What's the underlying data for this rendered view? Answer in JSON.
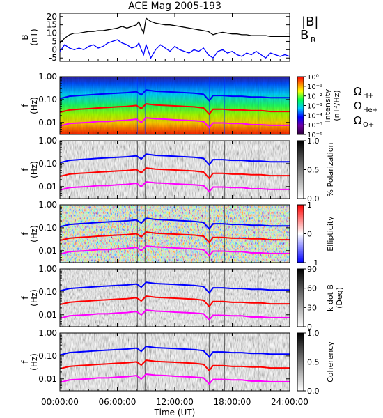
{
  "title": "ACE Mag 2005-193",
  "colors": {
    "bmag": "#000000",
    "br": "#0000ff",
    "h_plus": "#0000ff",
    "he_plus": "#ff0000",
    "o_plus": "#ff00ff"
  },
  "chart_data": {
    "type": "multi-panel",
    "x_axis": {
      "label": "Time (UT)",
      "range": [
        "00:00:00",
        "24:00:00"
      ],
      "ticks": [
        "00:00:00",
        "06:00:00",
        "12:00:00",
        "18:00:00",
        "24:00:00"
      ]
    },
    "panels": [
      {
        "name": "magnetic-field",
        "type": "line",
        "ylabel": "B",
        "yunits": "(nT)",
        "ylim": [
          -7,
          22
        ],
        "yticks": [
          "20",
          "15",
          "10",
          "5",
          "0",
          "-5"
        ],
        "legend": [
          "|B|",
          "B"
        ],
        "legend_sub": "R",
        "series": [
          {
            "name": "|B|",
            "color": "#000000",
            "x_hours": [
              0,
              0.5,
              1,
              1.5,
              2,
              2.5,
              3,
              3.5,
              4,
              4.5,
              5,
              5.5,
              6,
              6.5,
              7,
              7.5,
              8,
              8.25,
              8.5,
              8.75,
              9,
              9.5,
              10,
              10.5,
              11,
              11.5,
              12,
              12.5,
              13,
              13.5,
              14,
              14.5,
              15,
              15.5,
              16,
              16.5,
              17,
              17.5,
              18,
              18.5,
              19,
              19.5,
              20,
              20.5,
              21,
              21.5,
              22,
              22.5,
              23,
              23.5,
              24
            ],
            "values": [
              4,
              7,
              9,
              10,
              10,
              10.5,
              11,
              11,
              11.5,
              11.5,
              12,
              12.5,
              13,
              14,
              13,
              14,
              15,
              17,
              13,
              10,
              19,
              17,
              16,
              15.5,
              15,
              15,
              14.5,
              14,
              13.5,
              13,
              12.5,
              12,
              11.5,
              11,
              9,
              10,
              10.5,
              10,
              9.5,
              9.5,
              9,
              9,
              8.5,
              8.5,
              8.5,
              8.5,
              8,
              8,
              8,
              8,
              8
            ]
          },
          {
            "name": "BR",
            "color": "#0000ff",
            "x_hours": [
              0,
              0.5,
              1,
              1.5,
              2,
              2.5,
              3,
              3.5,
              4,
              4.5,
              5,
              5.5,
              6,
              6.5,
              7,
              7.5,
              8,
              8.25,
              8.5,
              8.75,
              9,
              9.5,
              10,
              10.5,
              11,
              11.5,
              12,
              12.5,
              13,
              13.5,
              14,
              14.5,
              15,
              15.5,
              16,
              16.5,
              17,
              17.5,
              18,
              18.5,
              19,
              19.5,
              20,
              20.5,
              21,
              21.5,
              22,
              22.5,
              23,
              23.5,
              24
            ],
            "values": [
              -1,
              3,
              1,
              0,
              1,
              0,
              2,
              3,
              1,
              2,
              4,
              5,
              6,
              4,
              3,
              1,
              2,
              4,
              0,
              -3,
              3,
              -5,
              0,
              3,
              1,
              -1,
              2,
              0,
              -1,
              -2,
              0,
              -1,
              1,
              -3,
              -5,
              -1,
              0,
              -2,
              -1,
              -3,
              -4,
              -2,
              -3,
              -1,
              -3,
              -5,
              -2,
              -3,
              -4,
              -3,
              -4
            ]
          }
        ]
      },
      {
        "name": "intensity",
        "type": "heatmap",
        "ylabel": "f",
        "yunits": "(Hz)",
        "ylim": [
          0.003,
          1.0
        ],
        "yscale": "log",
        "yticks": [
          "1.00",
          "0.10",
          "0.01"
        ],
        "colorbar": {
          "label": "Intensity",
          "units": "(nT²/Hz)",
          "ticks": [
            "10⁰",
            "10⁻¹",
            "10⁻²",
            "10⁻³",
            "10⁻⁴",
            "10⁻⁵",
            "10⁻⁶"
          ],
          "palette": "rainbow"
        },
        "gyro_labels": [
          {
            "text": "Ω",
            "sub": "H+",
            "color": "#0000ff"
          },
          {
            "text": "Ω",
            "sub": "He+",
            "color": "#ff0000"
          },
          {
            "text": "Ω",
            "sub": "O+",
            "color": "#ff00ff"
          }
        ]
      },
      {
        "name": "polarization",
        "type": "heatmap",
        "ylabel": "f",
        "yunits": "(Hz)",
        "ylim": [
          0.003,
          1.0
        ],
        "yscale": "log",
        "yticks": [
          "1.00",
          "0.10",
          "0.01"
        ],
        "colorbar": {
          "label": "% Polarization",
          "ticks": [
            "1.0",
            "0.5",
            "0.0"
          ],
          "palette": "gray"
        }
      },
      {
        "name": "ellipticity",
        "type": "heatmap",
        "ylabel": "f",
        "yunits": "(Hz)",
        "ylim": [
          0.003,
          1.0
        ],
        "yscale": "log",
        "yticks": [
          "1.00",
          "0.10",
          "0.01"
        ],
        "colorbar": {
          "label": "Ellipticity",
          "ticks": [
            "1",
            "0",
            "−1"
          ],
          "palette": "red-white-blue"
        }
      },
      {
        "name": "k-dot-b",
        "type": "heatmap",
        "ylabel": "f",
        "yunits": "(Hz)",
        "ylim": [
          0.003,
          1.0
        ],
        "yscale": "log",
        "yticks": [
          "1.00",
          "0.10",
          "0.01"
        ],
        "colorbar": {
          "label": "k dot B",
          "units": "(Deg)",
          "ticks": [
            "90",
            "60",
            "30",
            "0"
          ],
          "palette": "gray"
        }
      },
      {
        "name": "coherency",
        "type": "heatmap",
        "ylabel": "f",
        "yunits": "(Hz)",
        "ylim": [
          0.003,
          1.0
        ],
        "yscale": "log",
        "yticks": [
          "1.00",
          "0.10",
          "0.01"
        ],
        "colorbar": {
          "label": "Coherency",
          "ticks": [
            "1.0",
            "0.5",
            "0.0"
          ],
          "palette": "gray"
        }
      }
    ],
    "gyrofrequency_lines": [
      {
        "name": "H+",
        "color": "#0000ff",
        "x_hours": [
          0,
          1,
          2,
          3,
          4,
          5,
          6,
          7,
          8,
          8.5,
          9,
          10,
          11,
          12,
          13,
          14,
          15,
          15.6,
          16,
          17,
          18,
          19,
          20,
          21,
          22,
          23,
          24
        ],
        "values": [
          0.11,
          0.14,
          0.15,
          0.16,
          0.17,
          0.18,
          0.19,
          0.2,
          0.22,
          0.16,
          0.26,
          0.23,
          0.22,
          0.21,
          0.2,
          0.19,
          0.17,
          0.09,
          0.15,
          0.15,
          0.14,
          0.14,
          0.13,
          0.13,
          0.12,
          0.12,
          0.12
        ]
      },
      {
        "name": "He+",
        "color": "#ff0000",
        "x_hours": [
          0,
          1,
          2,
          3,
          4,
          5,
          6,
          7,
          8,
          8.5,
          9,
          10,
          11,
          12,
          13,
          14,
          15,
          15.6,
          16,
          17,
          18,
          19,
          20,
          21,
          22,
          23,
          24
        ],
        "values": [
          0.028,
          0.035,
          0.038,
          0.04,
          0.043,
          0.045,
          0.048,
          0.05,
          0.055,
          0.04,
          0.065,
          0.058,
          0.055,
          0.053,
          0.05,
          0.048,
          0.043,
          0.023,
          0.038,
          0.038,
          0.035,
          0.035,
          0.033,
          0.033,
          0.03,
          0.03,
          0.03
        ]
      },
      {
        "name": "O+",
        "color": "#ff00ff",
        "x_hours": [
          0,
          1,
          2,
          3,
          4,
          5,
          6,
          7,
          8,
          8.5,
          9,
          10,
          11,
          12,
          13,
          14,
          15,
          15.6,
          16,
          17,
          18,
          19,
          20,
          21,
          22,
          23,
          24
        ],
        "values": [
          0.007,
          0.009,
          0.0095,
          0.01,
          0.011,
          0.011,
          0.012,
          0.0125,
          0.014,
          0.01,
          0.016,
          0.0145,
          0.014,
          0.013,
          0.0125,
          0.012,
          0.011,
          0.006,
          0.0095,
          0.0095,
          0.009,
          0.009,
          0.008,
          0.008,
          0.0075,
          0.0075,
          0.0075
        ]
      }
    ]
  }
}
